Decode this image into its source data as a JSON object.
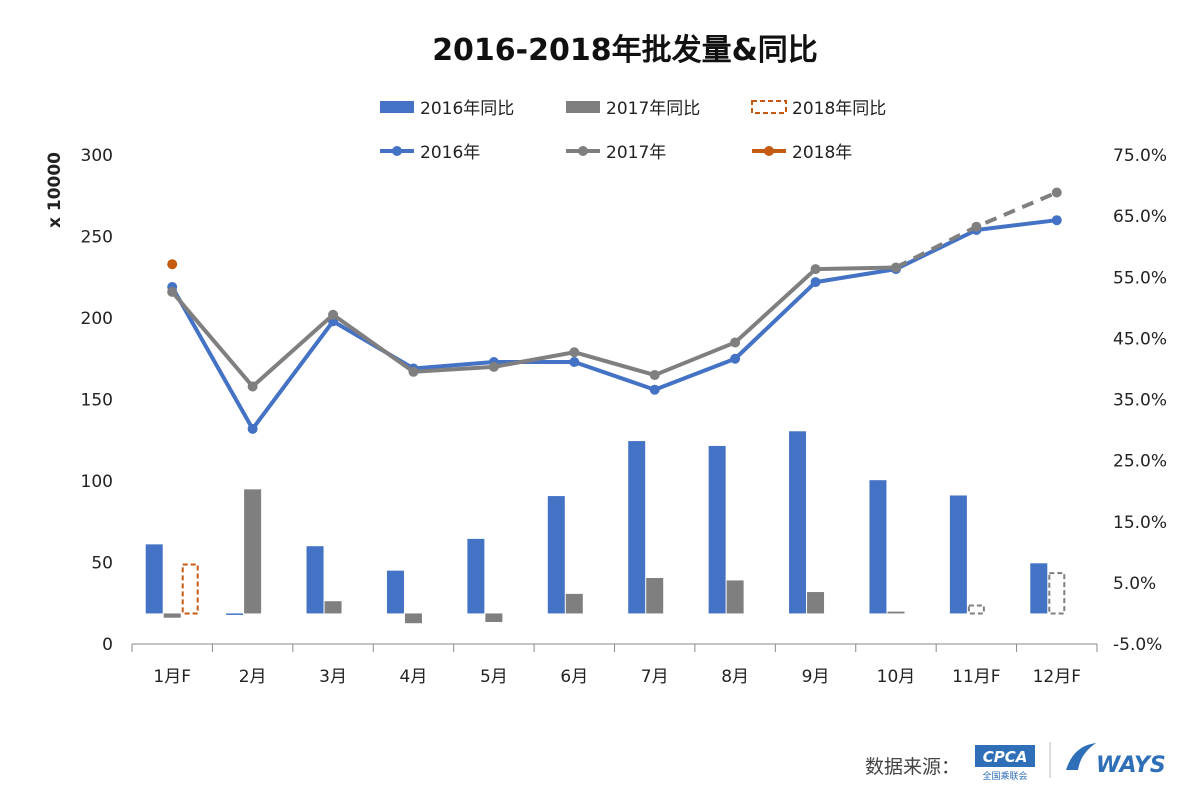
{
  "chart_data": {
    "type": "bar+line",
    "title": "2016-2018年批发量&同比",
    "categories": [
      "1月F",
      "2月",
      "3月",
      "4月",
      "5月",
      "6月",
      "7月",
      "8月",
      "9月",
      "10月",
      "11月F",
      "12月F"
    ],
    "y_left": {
      "label": "x 10000",
      "min": 0,
      "max": 300,
      "ticks": [
        "0",
        "50",
        "100",
        "150",
        "200",
        "250",
        "300"
      ]
    },
    "y_right": {
      "min": -5,
      "max": 75,
      "ticks": [
        "-5.0%",
        "5.0%",
        "15.0%",
        "25.0%",
        "35.0%",
        "45.0%",
        "55.0%",
        "65.0%",
        "75.0%"
      ]
    },
    "bar_series": [
      {
        "name": "2016年同比",
        "color": "#4472c4",
        "values": [
          11.3,
          -0.2,
          11.0,
          7.0,
          12.2,
          19.2,
          28.2,
          27.4,
          29.8,
          21.8,
          19.3,
          8.2
        ]
      },
      {
        "name": "2017年同比",
        "color": "#7f7f7f",
        "values": [
          -0.7,
          20.3,
          2.0,
          -1.6,
          -1.4,
          3.2,
          5.8,
          5.4,
          3.5,
          0.3,
          null,
          null
        ]
      },
      {
        "name": "2018年同比",
        "color": "#c55a11",
        "style": "dashed",
        "values": [
          8.0,
          null,
          null,
          null,
          null,
          null,
          null,
          null,
          null,
          null,
          null,
          null
        ]
      },
      {
        "name": "2017年同比预测",
        "color": "#7f7f7f",
        "style": "dashed",
        "legend": false,
        "values": [
          null,
          null,
          null,
          null,
          null,
          null,
          null,
          null,
          null,
          null,
          1.3,
          6.6
        ]
      }
    ],
    "line_series": [
      {
        "name": "2016年",
        "color": "#4472c4",
        "values": [
          219,
          132,
          198,
          169,
          173,
          173,
          156,
          175,
          222,
          230,
          254,
          260
        ]
      },
      {
        "name": "2017年",
        "color": "#7f7f7f",
        "values": [
          216,
          158,
          202,
          167,
          170,
          179,
          165,
          185,
          230,
          231,
          256,
          277
        ],
        "dashed_from_index": 9
      },
      {
        "name": "2018年",
        "color": "#c55a11",
        "values": [
          233,
          null,
          null,
          null,
          null,
          null,
          null,
          null,
          null,
          null,
          null,
          null
        ]
      }
    ],
    "legend_position": "top",
    "grid": false
  },
  "source": {
    "label": "数据来源：",
    "logo1": "CPCA",
    "logo1_sub": "全国乘联会",
    "logo2": "WAYS"
  }
}
